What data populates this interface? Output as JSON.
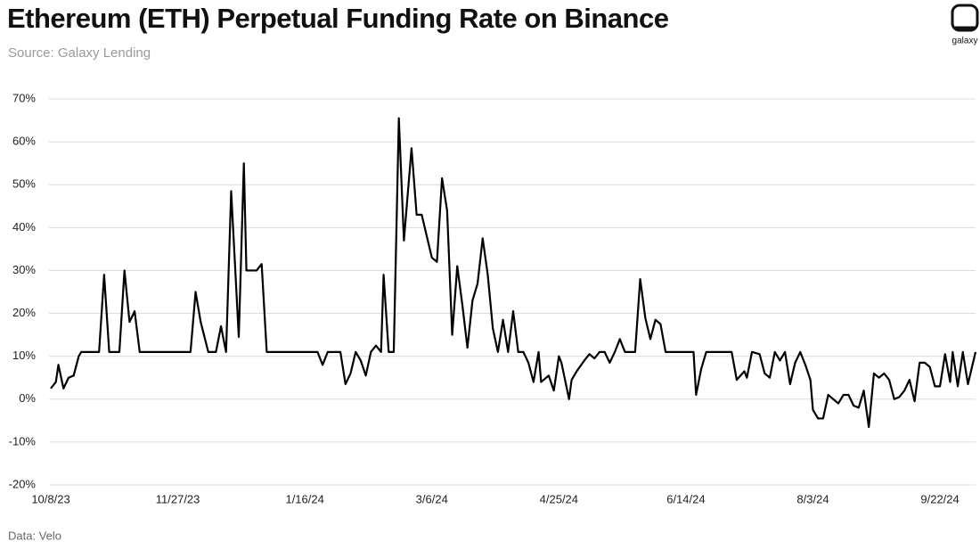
{
  "chart_data": {
    "type": "line",
    "title": "Ethereum (ETH) Perpetual Funding Rate on Binance",
    "subtitle": "Source: Galaxy Lending",
    "note": "Data: Velo",
    "logo_text": "galaxy",
    "grid": true,
    "color": "#000000",
    "ylim": [
      -20,
      70
    ],
    "yticks": [
      {
        "value": -20,
        "label": "-20%"
      },
      {
        "value": -10,
        "label": "-10%"
      },
      {
        "value": 0,
        "label": "0%"
      },
      {
        "value": 10,
        "label": "10%"
      },
      {
        "value": 20,
        "label": "20%"
      },
      {
        "value": 30,
        "label": "30%"
      },
      {
        "value": 40,
        "label": "40%"
      },
      {
        "value": 50,
        "label": "50%"
      },
      {
        "value": 60,
        "label": "60%"
      },
      {
        "value": 70,
        "label": "70%"
      }
    ],
    "xlim": [
      "2023-10-08",
      "2024-10-06"
    ],
    "xticks": [
      {
        "value": "2023-10-08",
        "label": "10/8/23"
      },
      {
        "value": "2023-11-27",
        "label": "11/27/23"
      },
      {
        "value": "2024-01-16",
        "label": "1/16/24"
      },
      {
        "value": "2024-03-06",
        "label": "3/6/24"
      },
      {
        "value": "2024-04-25",
        "label": "4/25/24"
      },
      {
        "value": "2024-06-14",
        "label": "6/14/24"
      },
      {
        "value": "2024-08-03",
        "label": "8/3/24"
      },
      {
        "value": "2024-09-22",
        "label": "9/22/24"
      }
    ],
    "x": [
      "2023-10-08",
      "2023-10-10",
      "2023-10-11",
      "2023-10-13",
      "2023-10-15",
      "2023-10-17",
      "2023-10-19",
      "2023-10-20",
      "2023-10-27",
      "2023-10-29",
      "2023-10-31",
      "2023-11-04",
      "2023-11-06",
      "2023-11-08",
      "2023-11-10",
      "2023-11-12",
      "2023-12-02",
      "2023-12-04",
      "2023-12-06",
      "2023-12-09",
      "2023-12-12",
      "2023-12-14",
      "2023-12-16",
      "2023-12-18",
      "2023-12-21",
      "2023-12-23",
      "2023-12-24",
      "2023-12-28",
      "2023-12-30",
      "2024-01-01",
      "2024-01-21",
      "2024-01-23",
      "2024-01-25",
      "2024-01-30",
      "2024-02-01",
      "2024-02-03",
      "2024-02-05",
      "2024-02-07",
      "2024-02-09",
      "2024-02-11",
      "2024-02-13",
      "2024-02-15",
      "2024-02-16",
      "2024-02-18",
      "2024-02-20",
      "2024-02-22",
      "2024-02-24",
      "2024-02-27",
      "2024-02-29",
      "2024-03-02",
      "2024-03-04",
      "2024-03-06",
      "2024-03-08",
      "2024-03-10",
      "2024-03-12",
      "2024-03-14",
      "2024-03-16",
      "2024-03-18",
      "2024-03-20",
      "2024-03-22",
      "2024-03-24",
      "2024-03-26",
      "2024-03-28",
      "2024-03-30",
      "2024-04-01",
      "2024-04-03",
      "2024-04-05",
      "2024-04-07",
      "2024-04-09",
      "2024-04-11",
      "2024-04-13",
      "2024-04-15",
      "2024-04-17",
      "2024-04-18",
      "2024-04-21",
      "2024-04-23",
      "2024-04-25",
      "2024-04-26",
      "2024-04-29",
      "2024-04-30",
      "2024-05-02",
      "2024-05-05",
      "2024-05-07",
      "2024-05-09",
      "2024-05-11",
      "2024-05-13",
      "2024-05-15",
      "2024-05-17",
      "2024-05-19",
      "2024-05-21",
      "2024-05-25",
      "2024-05-27",
      "2024-05-29",
      "2024-05-31",
      "2024-06-02",
      "2024-06-04",
      "2024-06-06",
      "2024-06-17",
      "2024-06-18",
      "2024-06-20",
      "2024-06-22",
      "2024-07-02",
      "2024-07-04",
      "2024-07-07",
      "2024-07-08",
      "2024-07-10",
      "2024-07-13",
      "2024-07-15",
      "2024-07-17",
      "2024-07-19",
      "2024-07-21",
      "2024-07-23",
      "2024-07-25",
      "2024-07-27",
      "2024-07-29",
      "2024-07-31",
      "2024-08-02",
      "2024-08-03",
      "2024-08-05",
      "2024-08-07",
      "2024-08-09",
      "2024-08-11",
      "2024-08-13",
      "2024-08-15",
      "2024-08-17",
      "2024-08-19",
      "2024-08-21",
      "2024-08-23",
      "2024-08-25",
      "2024-08-27",
      "2024-08-29",
      "2024-08-31",
      "2024-09-02",
      "2024-09-04",
      "2024-09-06",
      "2024-09-08",
      "2024-09-10",
      "2024-09-12",
      "2024-09-14",
      "2024-09-16",
      "2024-09-18",
      "2024-09-20",
      "2024-09-22",
      "2024-09-24",
      "2024-09-26",
      "2024-09-27",
      "2024-09-29",
      "2024-10-01",
      "2024-10-03",
      "2024-10-06"
    ],
    "values": [
      2.5,
      4,
      8,
      2.5,
      5,
      5.5,
      10,
      11,
      11,
      29,
      11,
      11,
      30,
      18,
      20.5,
      11,
      11,
      25,
      18,
      11,
      11,
      17,
      11,
      48.5,
      14.5,
      55,
      30,
      30,
      31.5,
      11,
      11,
      8,
      11,
      11,
      3.5,
      6,
      11,
      9,
      5.5,
      11,
      12.5,
      11,
      29,
      11,
      11,
      65.5,
      37,
      58.5,
      43,
      43,
      38,
      33,
      32,
      51.5,
      44,
      15,
      31,
      22,
      12,
      23,
      27,
      37.5,
      29,
      16.5,
      11,
      18.5,
      11,
      20.5,
      11,
      11,
      8.5,
      4,
      11,
      4,
      5.5,
      2,
      10,
      8.5,
      0,
      4.5,
      6.5,
      9,
      10.5,
      9.5,
      11,
      11,
      8.5,
      11,
      14,
      11,
      11,
      28,
      19,
      14,
      18.5,
      17.5,
      11,
      11,
      1,
      7,
      11,
      11,
      4.5,
      6.5,
      5,
      11,
      10.5,
      6,
      5,
      11,
      9,
      11,
      3.5,
      8.5,
      11,
      8,
      4.5,
      -2.5,
      -4.5,
      -4.5,
      1,
      0,
      -1,
      1,
      1,
      -1.5,
      -2,
      2,
      -6.5,
      6,
      5,
      6,
      4.5,
      0,
      0.5,
      2,
      4.5,
      -0.5,
      8.5,
      8.5,
      7.5,
      3,
      3,
      10.5,
      4,
      11,
      3,
      11,
      3.5,
      11
    ]
  }
}
